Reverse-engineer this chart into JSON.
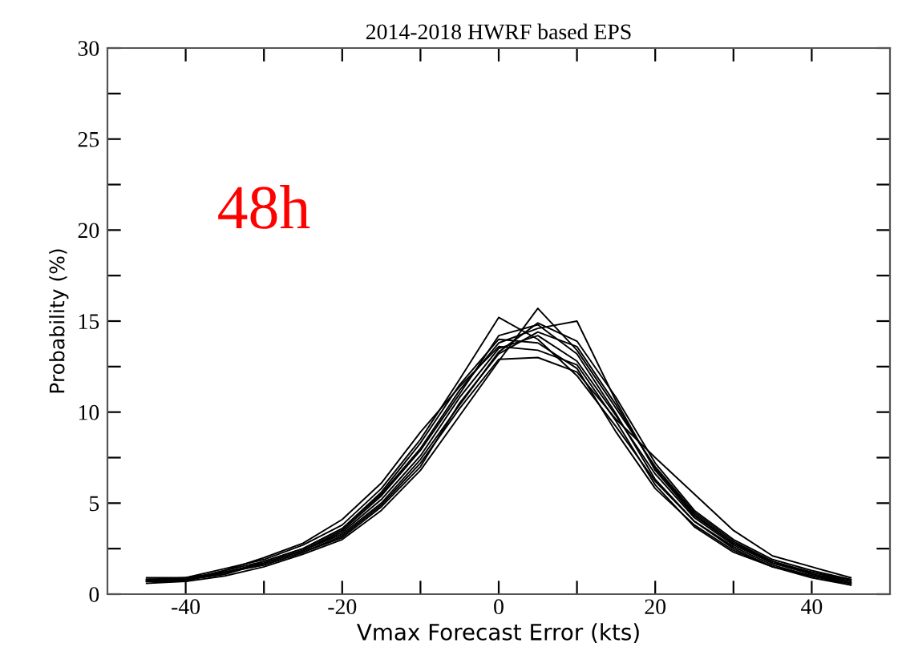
{
  "chart_data": {
    "type": "line",
    "title": "2014-2018 HWRF based EPS",
    "xlabel": "Vmax Forecast Error (kts)",
    "ylabel": "Probability (%)",
    "annotations": [
      "48h"
    ],
    "x": [
      -45,
      -40,
      -35,
      -30,
      -25,
      -20,
      -15,
      -10,
      -5,
      0,
      5,
      10,
      15,
      20,
      25,
      30,
      35,
      40,
      45
    ],
    "xlim": [
      -50,
      50
    ],
    "ylim": [
      0,
      30
    ],
    "xticks": [
      -40,
      {
        "value": -30,
        "label": null
      },
      -20,
      {
        "value": -10,
        "label": null
      },
      0,
      {
        "value": 10,
        "label": null
      },
      20,
      {
        "value": 30,
        "label": null
      },
      40
    ],
    "yticks": [
      0,
      {
        "value": 2.5,
        "label": null
      },
      5,
      {
        "value": 7.5,
        "label": null
      },
      10,
      {
        "value": 12.5,
        "label": null
      },
      15,
      {
        "value": 17.5,
        "label": null
      },
      20,
      {
        "value": 22.5,
        "label": null
      },
      25,
      {
        "value": 27.5,
        "label": null
      },
      30
    ],
    "grid": false,
    "legend": false,
    "marker": "none",
    "line_style": "solid",
    "series": [
      {
        "color": "#000000",
        "values": [
          0.7,
          0.8,
          1.2,
          1.7,
          2.4,
          3.4,
          5.2,
          7.6,
          10.8,
          13.5,
          14.2,
          12.8,
          9.8,
          6.6,
          4.2,
          2.7,
          1.7,
          1.1,
          0.7
        ]
      },
      {
        "color": "#000000",
        "values": [
          0.8,
          0.9,
          1.4,
          1.9,
          2.7,
          3.8,
          5.8,
          8.5,
          11.8,
          15.2,
          14.0,
          12.0,
          9.2,
          6.2,
          4.0,
          2.6,
          1.6,
          1.0,
          0.6
        ]
      },
      {
        "color": "#000000",
        "values": [
          0.6,
          0.7,
          1.0,
          1.5,
          2.2,
          3.0,
          4.6,
          6.8,
          9.8,
          12.8,
          15.7,
          13.4,
          10.2,
          7.0,
          4.5,
          2.9,
          1.8,
          1.2,
          0.8
        ]
      },
      {
        "color": "#000000",
        "values": [
          0.8,
          0.8,
          1.3,
          1.8,
          2.5,
          3.6,
          5.5,
          8.0,
          11.2,
          13.8,
          14.6,
          15.0,
          10.6,
          6.8,
          4.3,
          2.8,
          1.8,
          1.1,
          0.6
        ]
      },
      {
        "color": "#000000",
        "values": [
          0.7,
          0.9,
          1.2,
          1.6,
          2.3,
          3.2,
          4.9,
          7.2,
          10.2,
          12.9,
          13.0,
          12.2,
          9.6,
          7.5,
          5.5,
          3.5,
          2.1,
          1.5,
          0.9
        ]
      },
      {
        "color": "#000000",
        "values": [
          0.8,
          0.8,
          1.1,
          1.7,
          2.4,
          3.5,
          5.4,
          7.9,
          11.0,
          14.2,
          14.8,
          13.2,
          9.9,
          6.3,
          4.0,
          2.5,
          1.5,
          0.9,
          0.5
        ]
      },
      {
        "color": "#000000",
        "values": [
          0.7,
          0.7,
          1.3,
          2.0,
          2.8,
          4.1,
          6.1,
          8.9,
          11.4,
          13.6,
          13.4,
          12.6,
          9.5,
          6.0,
          3.7,
          2.3,
          1.5,
          1.0,
          0.6
        ]
      },
      {
        "color": "#000000",
        "values": [
          0.9,
          0.9,
          1.2,
          1.6,
          2.3,
          3.1,
          4.8,
          7.0,
          10.5,
          13.2,
          14.4,
          13.6,
          10.4,
          6.9,
          4.4,
          2.8,
          1.7,
          1.2,
          0.7
        ]
      },
      {
        "color": "#000000",
        "values": [
          0.7,
          0.8,
          1.1,
          1.8,
          2.5,
          3.6,
          5.6,
          8.3,
          11.5,
          14.0,
          13.8,
          12.4,
          8.9,
          5.8,
          3.8,
          2.4,
          1.5,
          1.0,
          0.5
        ]
      },
      {
        "color": "#000000",
        "values": [
          0.8,
          0.8,
          1.2,
          1.7,
          2.4,
          3.3,
          5.0,
          7.4,
          10.4,
          13.3,
          14.9,
          13.9,
          10.8,
          7.2,
          4.6,
          3.0,
          1.9,
          1.3,
          0.8
        ]
      }
    ]
  }
}
